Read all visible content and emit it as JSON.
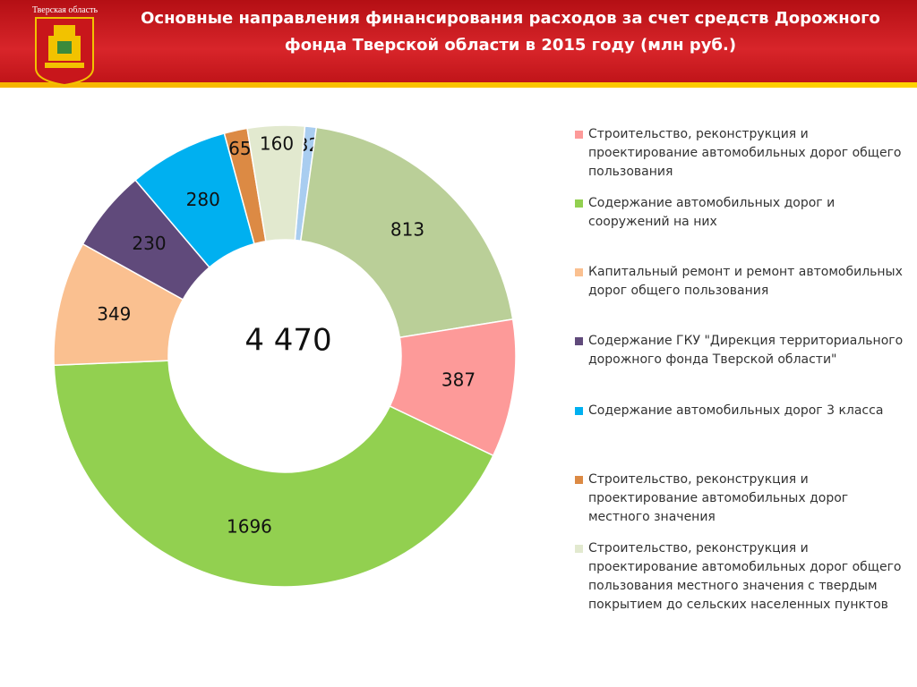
{
  "header": {
    "region": "Тверская область"
  },
  "chart_data": {
    "type": "donut",
    "title": "Основные направления финансирования расходов за счет средств Дорожного фонда Тверской области в 2015 году (млн руб.)",
    "center_label": "4 470",
    "categories": [
      null,
      null,
      "Строительство, реконструкция и проектирование автомобильных дорог общего пользования",
      "Содержание автомобильных дорог и сооружений на них",
      "Капитальный ремонт и ремонт автомобильных дорог общего пользования",
      "Содержание ГКУ \"Дирекция территориального дорожного фонда Тверской области\"",
      "Содержание автомобильных дорог 3 класса",
      "Строительство, реконструкция и проектирование автомобильных дорог местного значения",
      "Строительство, реконструкция и проектирование автомобильных дорог общего пользования местного значения с твердым покрытием до сельских населенных пунктов"
    ],
    "values": [
      32,
      813,
      387,
      1696,
      349,
      230,
      280,
      65,
      160
    ],
    "colors": [
      "#a9cdf0",
      "#bacf98",
      "#fd9a99",
      "#92d050",
      "#fac090",
      "#604a7b",
      "#00b0f0",
      "#dc8a44",
      "#e2e9cf"
    ]
  }
}
